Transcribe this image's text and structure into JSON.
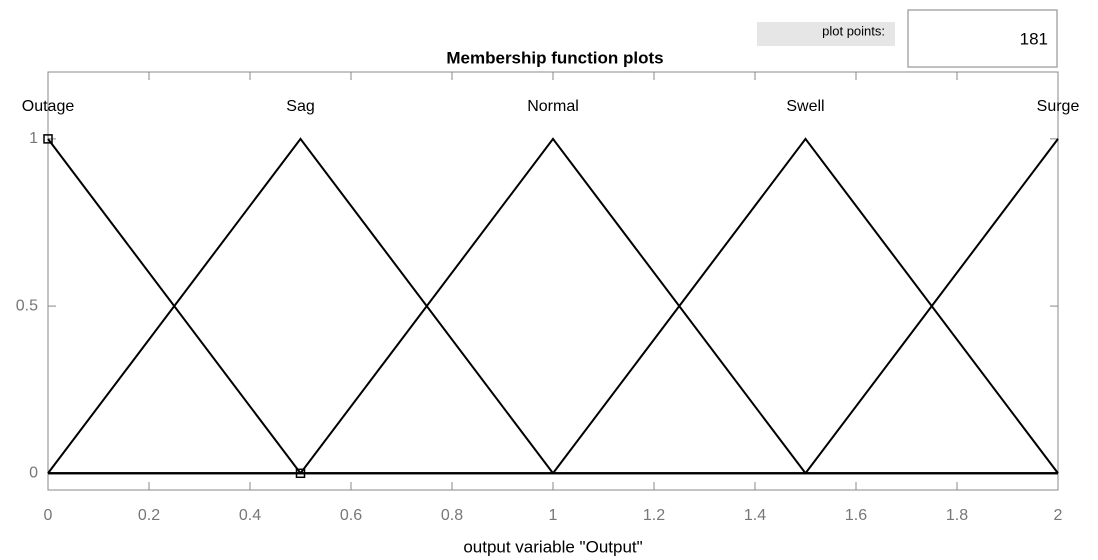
{
  "chart_data": {
    "type": "line",
    "title": "Membership function plots",
    "x_label": "output variable \"Output\"",
    "plot_points_label": "plot points:",
    "plot_points": 181,
    "x": [
      0,
      0.5,
      1,
      1.5,
      2
    ],
    "series": [
      {
        "name": "Outage",
        "color": "#000000",
        "values": [
          1,
          0,
          0,
          0,
          0
        ]
      },
      {
        "name": "Sag",
        "color": "#000000",
        "values": [
          0,
          1,
          0,
          0,
          0
        ]
      },
      {
        "name": "Normal",
        "color": "#000000",
        "values": [
          0,
          0,
          1,
          0,
          0
        ]
      },
      {
        "name": "Swell",
        "color": "#000000",
        "values": [
          0,
          0,
          0,
          1,
          0
        ]
      },
      {
        "name": "Surge",
        "color": "#000000",
        "values": [
          0,
          0,
          0,
          0,
          1
        ]
      }
    ],
    "selected_series": 0,
    "xlim": [
      0,
      2
    ],
    "xticks": [
      0,
      0.2,
      0.4,
      0.6,
      0.8,
      1,
      1.2,
      1.4,
      1.6,
      1.8,
      2
    ],
    "ylim": [
      -0.05,
      1.2
    ],
    "yticks": [
      0,
      0.5,
      1
    ]
  }
}
